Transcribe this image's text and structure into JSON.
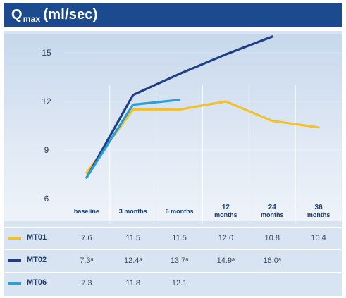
{
  "header": {
    "title_main": "Q",
    "title_sub": "max",
    "title_unit": "(ml/sec)"
  },
  "colors": {
    "header_bg": "#1b4a8e",
    "MT01": "#f2c12e",
    "MT02": "#1f3f85",
    "MT06": "#2a9fd8"
  },
  "chart_data": {
    "type": "line",
    "x": [
      "baseline",
      "3 months",
      "6 months",
      "12 months",
      "24 months",
      "36 months"
    ],
    "x_tick_labels": [
      [
        "baseline"
      ],
      [
        "3 months"
      ],
      [
        "6 months"
      ],
      [
        "12",
        "months"
      ],
      [
        "24",
        "months"
      ],
      [
        "36",
        "months"
      ]
    ],
    "ylim": [
      6,
      16
    ],
    "yticks": [
      6,
      9,
      12,
      15
    ],
    "grid": true,
    "series": [
      {
        "name": "MT01",
        "color": "#f2c12e",
        "values": [
          7.6,
          11.5,
          11.5,
          12.0,
          10.8,
          10.4
        ],
        "labels": [
          "7.6",
          "11.5",
          "11.5",
          "12.0",
          "10.8",
          "10.4"
        ]
      },
      {
        "name": "MT02",
        "color": "#1f3f85",
        "values": [
          7.3,
          12.4,
          13.7,
          14.9,
          16.0,
          null
        ],
        "labels": [
          "7.3ᵃ",
          "12.4ᵃ",
          "13.7ᵃ",
          "14.9ᵃ",
          "16.0ᵃ",
          ""
        ]
      },
      {
        "name": "MT06",
        "color": "#2a9fd8",
        "values": [
          7.3,
          11.8,
          12.1,
          null,
          null,
          null
        ],
        "labels": [
          "7.3",
          "11.8",
          "12.1",
          "",
          "",
          ""
        ]
      }
    ]
  }
}
